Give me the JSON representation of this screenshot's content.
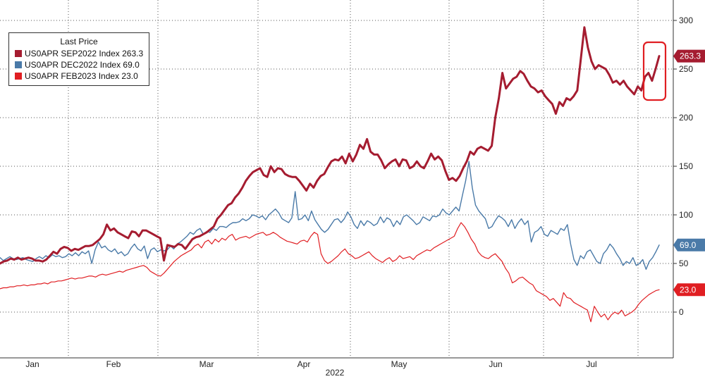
{
  "chart_data": {
    "type": "line",
    "legend": {
      "title": "Last Price",
      "placement": "top-left"
    },
    "xlabel": "2022",
    "x_ticks": [
      "Jan",
      "Feb",
      "Mar",
      "Apr",
      "May",
      "Jun",
      "Jul"
    ],
    "y_ticks": [
      0,
      50,
      100,
      150,
      200,
      250,
      300
    ],
    "ylim": [
      -45,
      310
    ],
    "grid": true,
    "highlight": {
      "series": 0,
      "note": "red rounded box around latest move"
    },
    "series": [
      {
        "name": "US0APR SEP2022 Index",
        "last": "263.3",
        "color": "#a51c30",
        "values": [
          50,
          52,
          53,
          55,
          54,
          56,
          54,
          55,
          56,
          55,
          53,
          53,
          52,
          54,
          58,
          62,
          60,
          65,
          67,
          66,
          63,
          65,
          64,
          66,
          68,
          68,
          69,
          72,
          75,
          80,
          90,
          84,
          86,
          82,
          80,
          78,
          76,
          83,
          82,
          78,
          84,
          84,
          82,
          80,
          78,
          76,
          53,
          69,
          68,
          67,
          70,
          69,
          65,
          70,
          75,
          77,
          78,
          80,
          82,
          85,
          88,
          96,
          100,
          105,
          110,
          112,
          118,
          122,
          128,
          135,
          140,
          144,
          146,
          148,
          141,
          139,
          150,
          144,
          148,
          147,
          142,
          140,
          139,
          139,
          135,
          130,
          125,
          132,
          128,
          135,
          140,
          142,
          149,
          155,
          157,
          156,
          160,
          153,
          163,
          155,
          162,
          172,
          168,
          178,
          165,
          162,
          162,
          156,
          148,
          152,
          155,
          157,
          150,
          157,
          156,
          148,
          150,
          155,
          150,
          148,
          155,
          163,
          157,
          160,
          156,
          145,
          136,
          138,
          135,
          140,
          148,
          155,
          165,
          162,
          168,
          170,
          168,
          166,
          171,
          200,
          220,
          246,
          230,
          235,
          240,
          242,
          248,
          245,
          238,
          232,
          230,
          226,
          228,
          222,
          218,
          214,
          204,
          216,
          212,
          220,
          218,
          222,
          228,
          260,
          293,
          272,
          258,
          250,
          254,
          252,
          250,
          244,
          236,
          238,
          234,
          238,
          232,
          228,
          224,
          232,
          228,
          242,
          246,
          238,
          250,
          263.3
        ]
      },
      {
        "name": "US0APR DEC2022 Index",
        "last": "69.0",
        "color": "#4a7aa8",
        "values": [
          56,
          53,
          55,
          57,
          55,
          54,
          55,
          56,
          54,
          53,
          52,
          55,
          57,
          55,
          58,
          56,
          59,
          57,
          58,
          56,
          57,
          60,
          58,
          61,
          58,
          62,
          60,
          63,
          50,
          64,
          72,
          66,
          68,
          64,
          62,
          65,
          60,
          62,
          58,
          60,
          66,
          70,
          65,
          63,
          68,
          55,
          64,
          66,
          62,
          64,
          63,
          64,
          68,
          65,
          70,
          72,
          75,
          78,
          82,
          80,
          84,
          86,
          80,
          83,
          82,
          86,
          84,
          88,
          88,
          87,
          90,
          92,
          92,
          93,
          96,
          94,
          96,
          100,
          99,
          97,
          99,
          95,
          100,
          103,
          106,
          102,
          96,
          94,
          92,
          97,
          124,
          95,
          96,
          100,
          94,
          104,
          95,
          90,
          85,
          82,
          85,
          90,
          95,
          96,
          92,
          96,
          103,
          98,
          90,
          86,
          94,
          89,
          94,
          92,
          89,
          91,
          98,
          92,
          97,
          95,
          88,
          94,
          90,
          98,
          100,
          97,
          94,
          90,
          92,
          98,
          96,
          94,
          99,
          98,
          100,
          106,
          102,
          100,
          104,
          108,
          104,
          120,
          135,
          155,
          128,
          110,
          104,
          100,
          96,
          86,
          88,
          94,
          99,
          97,
          94,
          88,
          95,
          86,
          92,
          96,
          90,
          94,
          72,
          82,
          84,
          88,
          80,
          78,
          84,
          82,
          80,
          86,
          84,
          90,
          70,
          54,
          48,
          58,
          55,
          62,
          64,
          58,
          52,
          50,
          60,
          64,
          70,
          66,
          60,
          55,
          48,
          52,
          50,
          56,
          48,
          50,
          54,
          44,
          52,
          56,
          62,
          69.0
        ]
      },
      {
        "name": "US0APR FEB2023 Index",
        "last": "23.0",
        "color": "#e01e22",
        "values": [
          24,
          25,
          25,
          26,
          26,
          27,
          27,
          28,
          27,
          28,
          28,
          29,
          29,
          30,
          29,
          31,
          31,
          32,
          32,
          33,
          34,
          35,
          34,
          35,
          35,
          36,
          37,
          37,
          36,
          38,
          39,
          38,
          39,
          40,
          41,
          42,
          41,
          43,
          44,
          45,
          46,
          47,
          48,
          46,
          42,
          40,
          38,
          37,
          40,
          44,
          48,
          52,
          55,
          58,
          60,
          62,
          64,
          68,
          70,
          66,
          72,
          74,
          70,
          75,
          72,
          76,
          74,
          78,
          80,
          74,
          76,
          77,
          78,
          76,
          78,
          80,
          81,
          82,
          79,
          80,
          82,
          80,
          77,
          75,
          73,
          72,
          71,
          70,
          73,
          74,
          72,
          78,
          82,
          80,
          60,
          53,
          50,
          52,
          55,
          58,
          62,
          65,
          60,
          58,
          55,
          56,
          58,
          60,
          62,
          58,
          55,
          53,
          51,
          54,
          56,
          52,
          54,
          58,
          55,
          56,
          57,
          54,
          58,
          60,
          62,
          64,
          63,
          66,
          68,
          70,
          72,
          74,
          76,
          78,
          86,
          92,
          88,
          82,
          75,
          70,
          62,
          58,
          56,
          55,
          58,
          60,
          56,
          52,
          45,
          40,
          30,
          32,
          35,
          36,
          33,
          30,
          28,
          22,
          20,
          18,
          16,
          12,
          14,
          10,
          6,
          20,
          15,
          14,
          10,
          8,
          6,
          4,
          2,
          -10,
          6,
          0,
          -5,
          -2,
          -8,
          -3,
          0,
          -2,
          2,
          -4,
          -2,
          0,
          3,
          8,
          12,
          15,
          18,
          20,
          22,
          23.0
        ]
      }
    ]
  }
}
